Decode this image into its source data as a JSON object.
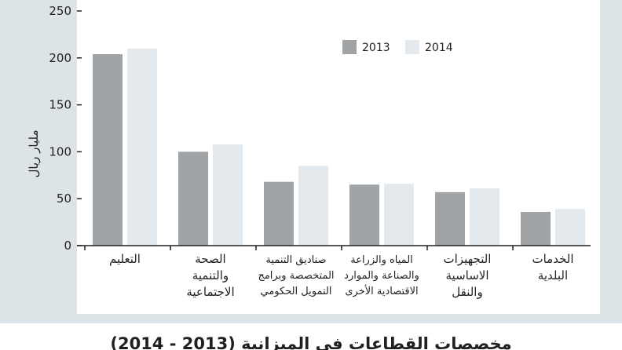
{
  "caption": "مخصصات القطاعات في الميزانية (2013 - 2014)",
  "colors": {
    "series_2013": "#a0a4a6",
    "series_2014": "#e3e9ec",
    "background": "#dde4e8",
    "plot": "#ffffff",
    "axis": "#231f20"
  },
  "chart_data": {
    "type": "bar",
    "title": "",
    "xlabel": "",
    "ylabel": "مليار ريال",
    "ylim": [
      0,
      250
    ],
    "yticks": [
      0,
      50,
      100,
      150,
      200,
      250
    ],
    "legend_position": "top-right",
    "categories": [
      [
        "التعليم"
      ],
      [
        "الصحة",
        "والتنمية",
        "الاجتماعية"
      ],
      [
        "صناديق التنمية",
        "المتخصصة وبرامج",
        "التمويل الحكومي"
      ],
      [
        "المياه والزراعة",
        "والصناعة والموارد",
        "الاقتصادية الأخرى"
      ],
      [
        "التجهيزات",
        "الاساسية",
        "والنقل"
      ],
      [
        "الخدمات",
        "البلدية"
      ]
    ],
    "series": [
      {
        "name": "2013",
        "values": [
          204,
          100,
          68,
          65,
          57,
          36
        ]
      },
      {
        "name": "2014",
        "values": [
          210,
          108,
          85,
          66,
          61,
          39
        ]
      }
    ]
  }
}
